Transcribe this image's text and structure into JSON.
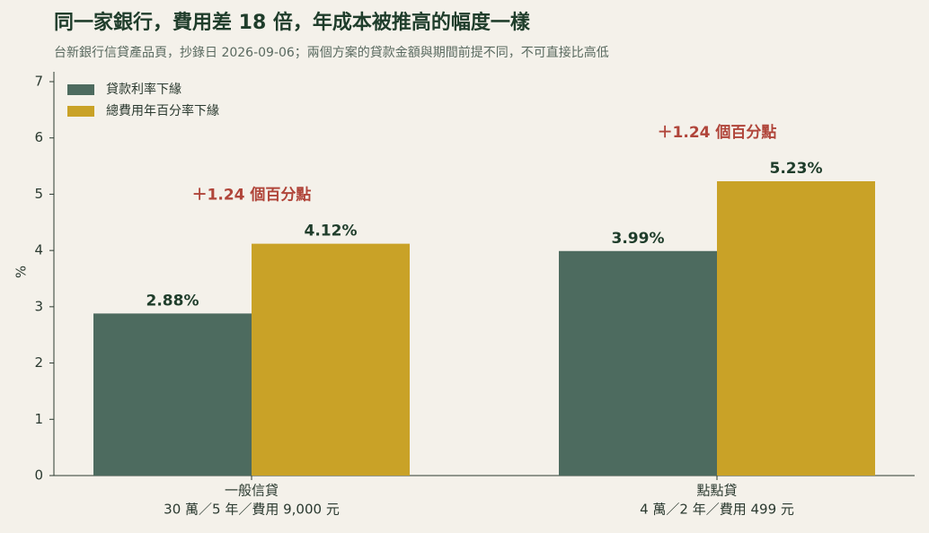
{
  "chart_data": {
    "type": "bar",
    "title": "同一家銀行，費用差 18 倍，年成本被推高的幅度一樣",
    "subtitle": "台新銀行信貸產品頁，抄錄日 2026-09-06；兩個方案的貸款金額與期間前提不同，不可直接比高低",
    "y_label": "%",
    "categories": [
      "一般信貸",
      "點點貸"
    ],
    "category_details": [
      "30 萬／5 年／費用 9,000 元",
      "4 萬／2 年／費用 499 元"
    ],
    "series": [
      {
        "name": "貸款利率下緣",
        "color": "#4d6b5f",
        "values": [
          2.88,
          3.99
        ],
        "value_labels": [
          "2.88%",
          "3.99%"
        ]
      },
      {
        "name": "總費用年百分率下緣",
        "color": "#c9a227",
        "values": [
          4.12,
          5.23
        ],
        "value_labels": [
          "4.12%",
          "5.23%"
        ]
      }
    ],
    "annotations": [
      "＋1.24 個百分點",
      "＋1.24 個百分點"
    ],
    "ylim": [
      0,
      7
    ],
    "yticks": [
      0,
      1,
      2,
      3,
      4,
      5,
      6,
      7
    ],
    "legend": "upper-left"
  }
}
